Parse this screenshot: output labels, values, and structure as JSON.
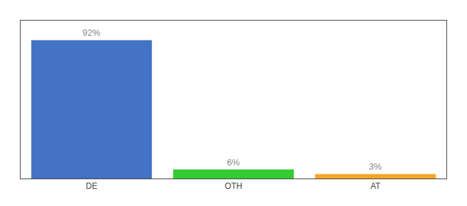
{
  "chart_data": {
    "type": "bar",
    "categories": [
      "DE",
      "OTH",
      "AT"
    ],
    "values": [
      92,
      6,
      3
    ],
    "value_labels": [
      "92%",
      "6%",
      "3%"
    ],
    "colors": [
      "#4472c4",
      "#33cc33",
      "#f5a623"
    ],
    "ylim": [
      0,
      105
    ],
    "grid": false,
    "data_labels": true,
    "tick_labels": "x"
  }
}
